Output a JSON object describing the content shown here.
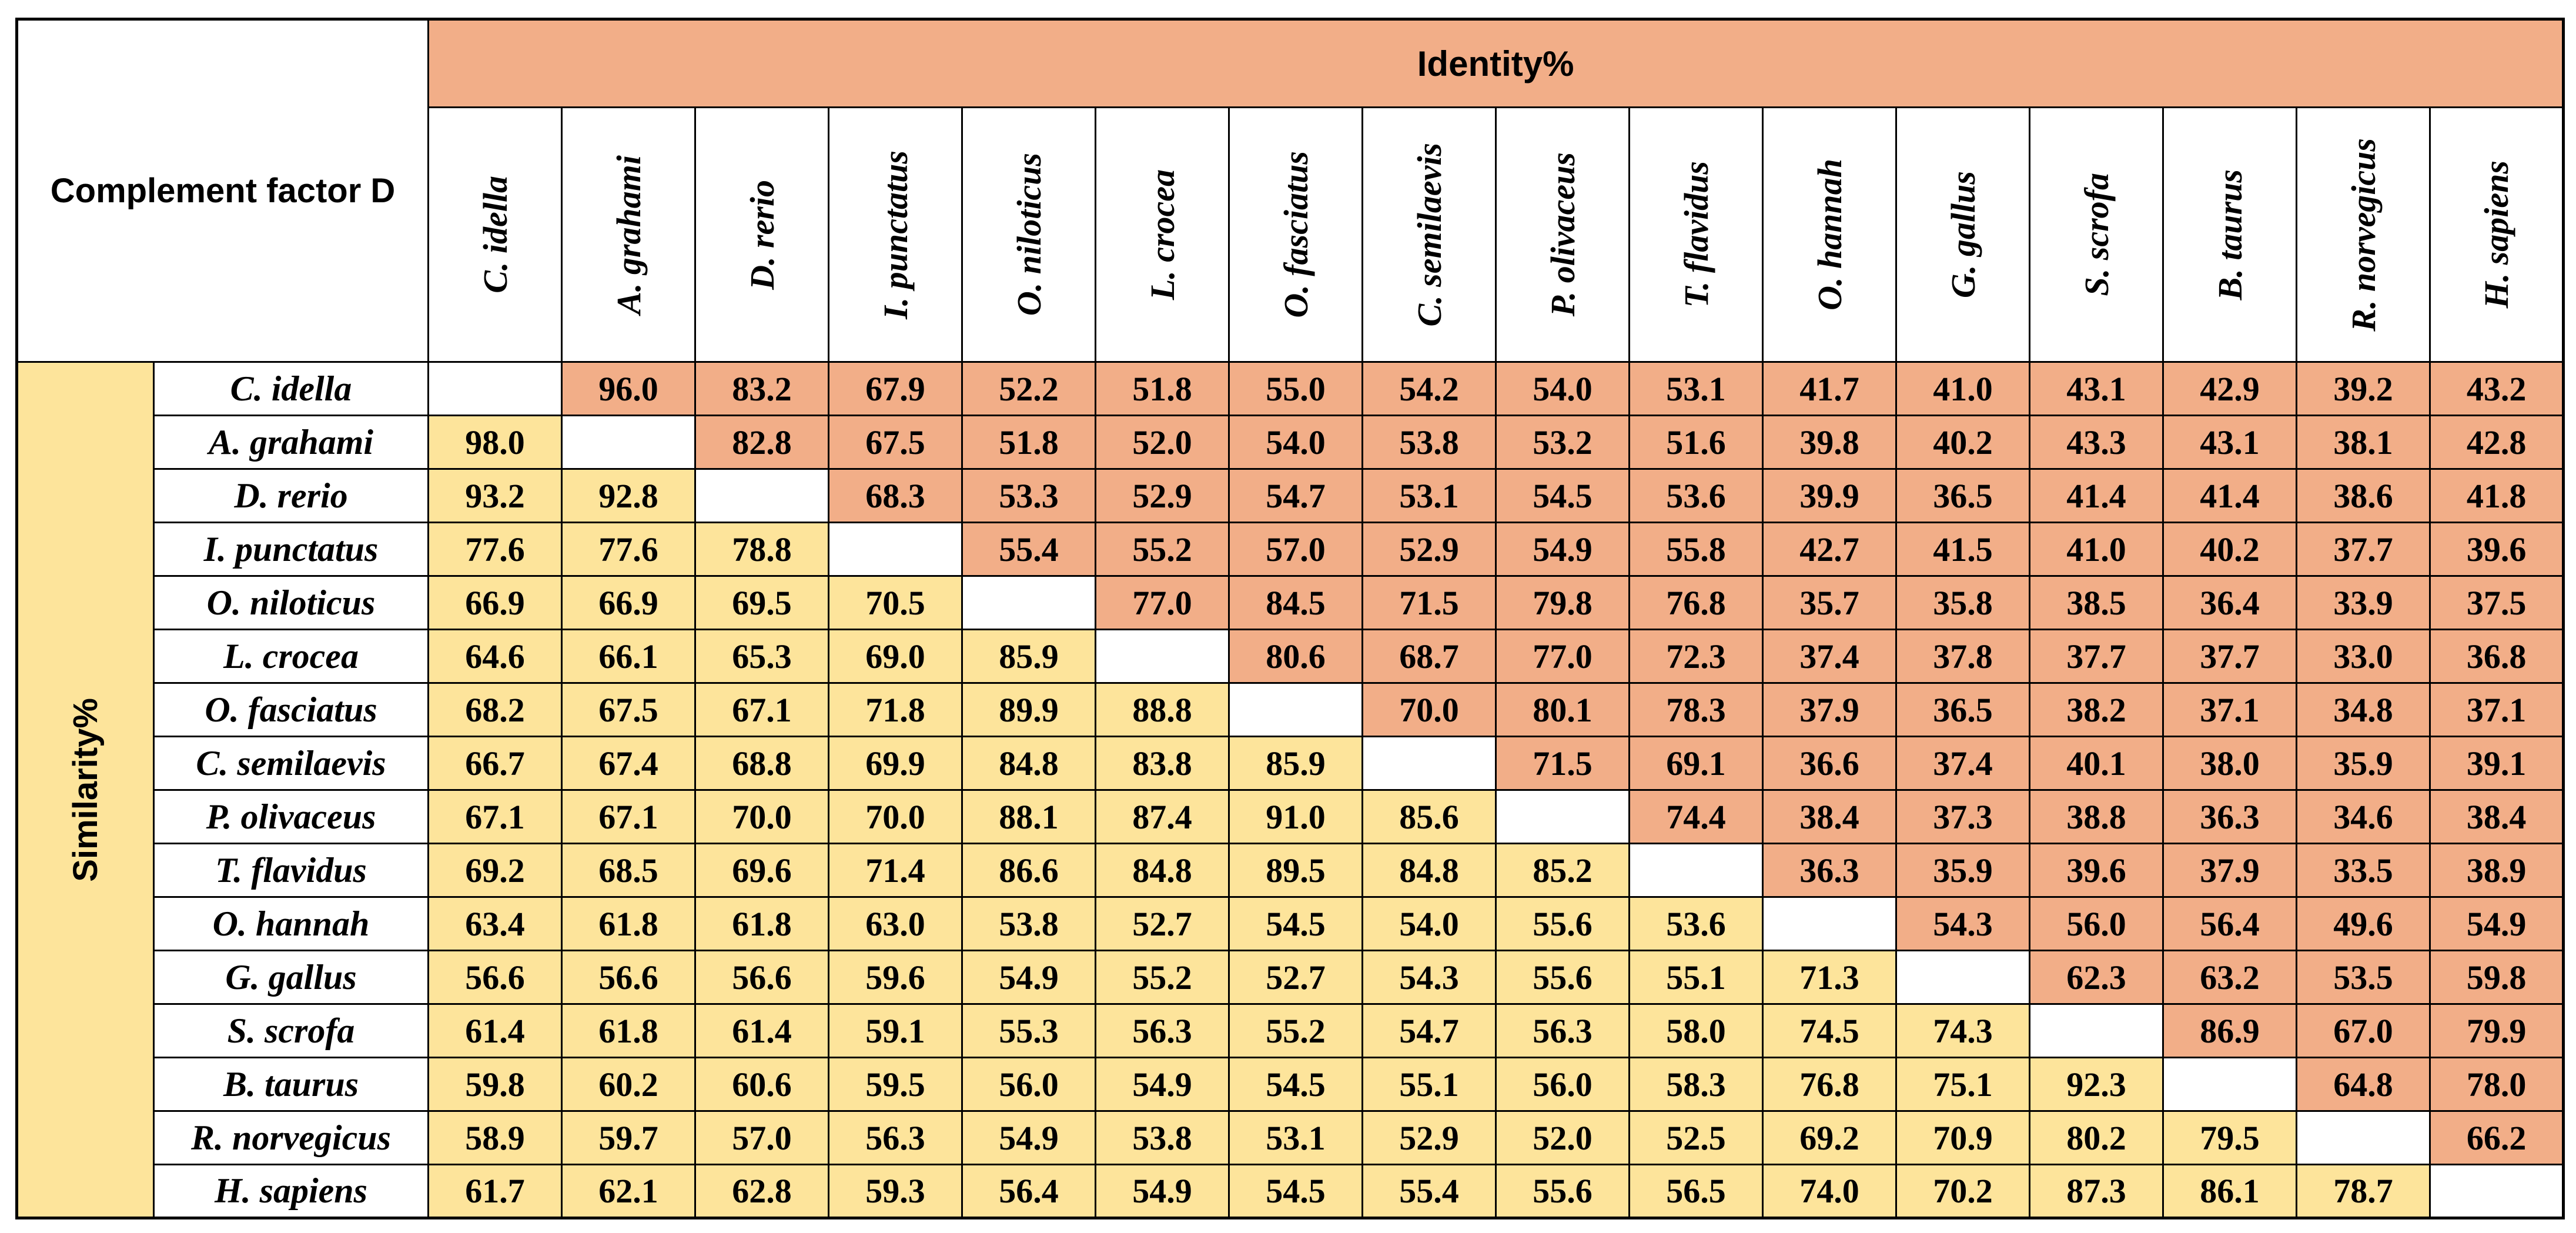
{
  "title": "Complement factor D",
  "identity_label": "Identity%",
  "similarity_label": "Similarity%",
  "colors": {
    "identity_fill": "#f2ae88",
    "similarity_fill": "#fde49b",
    "diagonal_fill": "#ffffff",
    "border": "#000000"
  },
  "species": [
    "C. idella",
    "A. grahami",
    "D. rerio",
    "I. punctatus",
    "O. niloticus",
    "L. crocea",
    "O. fasciatus",
    "C. semilaevis",
    "P. olivaceus",
    "T. flavidus",
    "O. hannah",
    "G. gallus",
    "S. scrofa",
    "B. taurus",
    "R. norvegicus",
    "H. sapiens"
  ],
  "matrix": [
    [
      "",
      "96.0",
      "83.2",
      "67.9",
      "52.2",
      "51.8",
      "55.0",
      "54.2",
      "54.0",
      "53.1",
      "41.7",
      "41.0",
      "43.1",
      "42.9",
      "39.2",
      "43.2"
    ],
    [
      "98.0",
      "",
      "82.8",
      "67.5",
      "51.8",
      "52.0",
      "54.0",
      "53.8",
      "53.2",
      "51.6",
      "39.8",
      "40.2",
      "43.3",
      "43.1",
      "38.1",
      "42.8"
    ],
    [
      "93.2",
      "92.8",
      "",
      "68.3",
      "53.3",
      "52.9",
      "54.7",
      "53.1",
      "54.5",
      "53.6",
      "39.9",
      "36.5",
      "41.4",
      "41.4",
      "38.6",
      "41.8"
    ],
    [
      "77.6",
      "77.6",
      "78.8",
      "",
      "55.4",
      "55.2",
      "57.0",
      "52.9",
      "54.9",
      "55.8",
      "42.7",
      "41.5",
      "41.0",
      "40.2",
      "37.7",
      "39.6"
    ],
    [
      "66.9",
      "66.9",
      "69.5",
      "70.5",
      "",
      "77.0",
      "84.5",
      "71.5",
      "79.8",
      "76.8",
      "35.7",
      "35.8",
      "38.5",
      "36.4",
      "33.9",
      "37.5"
    ],
    [
      "64.6",
      "66.1",
      "65.3",
      "69.0",
      "85.9",
      "",
      "80.6",
      "68.7",
      "77.0",
      "72.3",
      "37.4",
      "37.8",
      "37.7",
      "37.7",
      "33.0",
      "36.8"
    ],
    [
      "68.2",
      "67.5",
      "67.1",
      "71.8",
      "89.9",
      "88.8",
      "",
      "70.0",
      "80.1",
      "78.3",
      "37.9",
      "36.5",
      "38.2",
      "37.1",
      "34.8",
      "37.1"
    ],
    [
      "66.7",
      "67.4",
      "68.8",
      "69.9",
      "84.8",
      "83.8",
      "85.9",
      "",
      "71.5",
      "69.1",
      "36.6",
      "37.4",
      "40.1",
      "38.0",
      "35.9",
      "39.1"
    ],
    [
      "67.1",
      "67.1",
      "70.0",
      "70.0",
      "88.1",
      "87.4",
      "91.0",
      "85.6",
      "",
      "74.4",
      "38.4",
      "37.3",
      "38.8",
      "36.3",
      "34.6",
      "38.4"
    ],
    [
      "69.2",
      "68.5",
      "69.6",
      "71.4",
      "86.6",
      "84.8",
      "89.5",
      "84.8",
      "85.2",
      "",
      "36.3",
      "35.9",
      "39.6",
      "37.9",
      "33.5",
      "38.9"
    ],
    [
      "63.4",
      "61.8",
      "61.8",
      "63.0",
      "53.8",
      "52.7",
      "54.5",
      "54.0",
      "55.6",
      "53.6",
      "",
      "54.3",
      "56.0",
      "56.4",
      "49.6",
      "54.9"
    ],
    [
      "56.6",
      "56.6",
      "56.6",
      "59.6",
      "54.9",
      "55.2",
      "52.7",
      "54.3",
      "55.6",
      "55.1",
      "71.3",
      "",
      "62.3",
      "63.2",
      "53.5",
      "59.8"
    ],
    [
      "61.4",
      "61.8",
      "61.4",
      "59.1",
      "55.3",
      "56.3",
      "55.2",
      "54.7",
      "56.3",
      "58.0",
      "74.5",
      "74.3",
      "",
      "86.9",
      "67.0",
      "79.9"
    ],
    [
      "59.8",
      "60.2",
      "60.6",
      "59.5",
      "56.0",
      "54.9",
      "54.5",
      "55.1",
      "56.0",
      "58.3",
      "76.8",
      "75.1",
      "92.3",
      "",
      "64.8",
      "78.0"
    ],
    [
      "58.9",
      "59.7",
      "57.0",
      "56.3",
      "54.9",
      "53.8",
      "53.1",
      "52.9",
      "52.0",
      "52.5",
      "69.2",
      "70.9",
      "80.2",
      "79.5",
      "",
      "66.2"
    ],
    [
      "61.7",
      "62.1",
      "62.8",
      "59.3",
      "56.4",
      "54.9",
      "54.5",
      "55.4",
      "55.6",
      "56.5",
      "74.0",
      "70.2",
      "87.3",
      "86.1",
      "78.7",
      ""
    ]
  ]
}
